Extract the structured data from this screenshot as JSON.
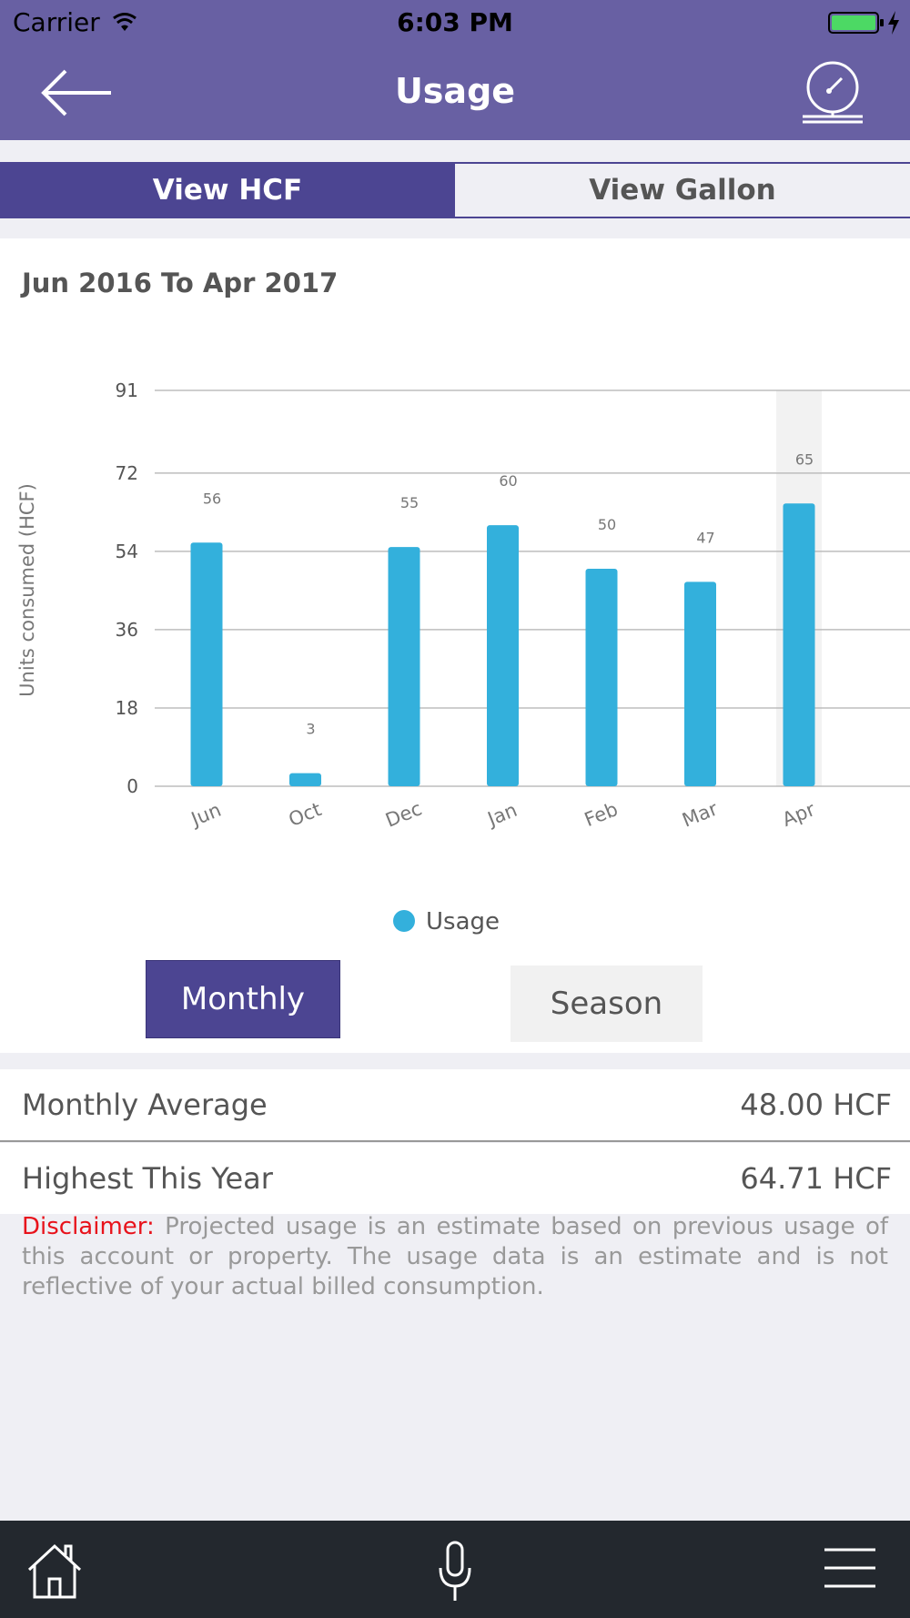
{
  "status_bar": {
    "carrier": "Carrier",
    "time": "6:03 PM"
  },
  "header": {
    "title": "Usage",
    "back_icon": "back-arrow-icon",
    "right_icon": "meter-gauge-icon"
  },
  "units_toggle": {
    "hcf_label": "View HCF",
    "gallon_label": "View Gallon",
    "selected": "hcf"
  },
  "chart_title": "Jun 2016 To Apr 2017",
  "chart_data": {
    "type": "bar",
    "categories": [
      "Jun",
      "Oct",
      "Dec",
      "Jan",
      "Feb",
      "Mar",
      "Apr"
    ],
    "series": [
      {
        "name": "Usage",
        "values": [
          56,
          3,
          55,
          60,
          50,
          47,
          65
        ],
        "color": "#33b0dc"
      }
    ],
    "data_labels": [
      "56",
      "3",
      "55",
      "60",
      "50",
      "47",
      "65"
    ],
    "ylabel": "Units consumed (HCF)",
    "yticks": [
      0,
      18,
      36,
      54,
      72,
      91
    ],
    "ylim": [
      0,
      91
    ],
    "highlighted_category": "Apr",
    "legend": "bottom-center",
    "grid": true
  },
  "period_toggle": {
    "monthly_label": "Monthly",
    "season_label": "Season",
    "selected": "monthly"
  },
  "stats": {
    "monthly_average_label": "Monthly Average",
    "monthly_average_value": "48.00 HCF",
    "highest_label": "Highest This Year",
    "highest_value": "64.71 HCF"
  },
  "disclaimer": {
    "label": "Disclaimer:",
    "text": "Projected usage is an estimate based on previous usage of this account or property. The usage data is an estimate and is not reflective of your actual billed consumption."
  },
  "tab_bar": {
    "items": [
      "home-icon",
      "microphone-icon",
      "menu-icon"
    ]
  },
  "colors": {
    "header": "#6860a3",
    "accent": "#4c4592",
    "bar": "#33b0dc",
    "disclaimer_label": "#e8121b",
    "tab_bar": "#23282e"
  }
}
